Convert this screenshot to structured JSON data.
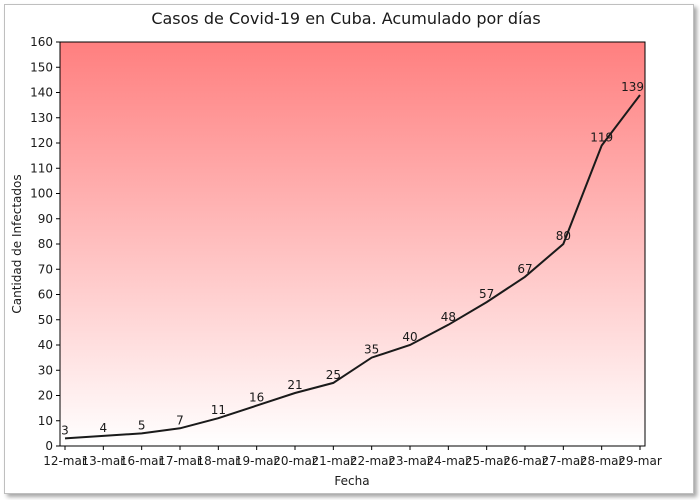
{
  "chart_data": {
    "type": "line",
    "title": "Casos de Covid-19 en Cuba. Acumulado por días",
    "xlabel": "Fecha",
    "ylabel": "Cantidad de Infectados",
    "categories": [
      "12-mar",
      "13-mar",
      "16-mar",
      "17-mar",
      "18-mar",
      "19-mar",
      "20-mar",
      "21-mar",
      "22-mar",
      "23-mar",
      "24-mar",
      "25-mar",
      "26-mar",
      "27-mar",
      "28-mar",
      "29-mar"
    ],
    "series": [
      {
        "values": [
          3,
          4,
          5,
          7,
          11,
          16,
          21,
          25,
          35,
          40,
          48,
          57,
          67,
          80,
          119,
          139
        ]
      }
    ],
    "ylim": [
      0,
      160
    ],
    "ytick_step": 10,
    "grid": false,
    "legend": "none",
    "colors": {
      "line": "#1a1a1a",
      "plot_bg_top": "#ff7f7f",
      "plot_bg_bottom": "#ffffff",
      "axis": "#000000"
    }
  }
}
